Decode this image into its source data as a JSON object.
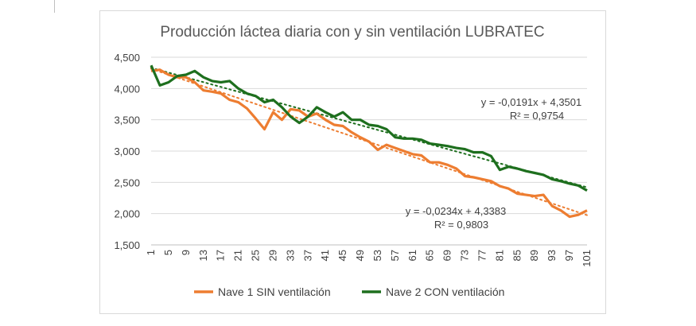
{
  "chart_data": {
    "type": "line",
    "title": "Producción láctea diaria con y sin ventilación LUBRATEC",
    "xlabel": "",
    "ylabel": "",
    "ylim": [
      1.5,
      4.5
    ],
    "xlim": [
      1,
      101
    ],
    "grid": true,
    "legend_position": "bottom",
    "y_ticks": [
      "1,500",
      "2,000",
      "2,500",
      "3,000",
      "3,500",
      "4,000",
      "4,500"
    ],
    "x_ticks": [
      "1",
      "5",
      "9",
      "13",
      "17",
      "21",
      "25",
      "29",
      "33",
      "37",
      "41",
      "45",
      "49",
      "53",
      "57",
      "61",
      "65",
      "69",
      "73",
      "77",
      "81",
      "85",
      "89",
      "93",
      "97",
      "101"
    ],
    "series": [
      {
        "name": "Nave 1 SIN ventilación",
        "color": "#ed7d31",
        "x": [
          1,
          3,
          5,
          7,
          9,
          11,
          13,
          15,
          17,
          19,
          21,
          23,
          25,
          27,
          29,
          31,
          33,
          35,
          37,
          39,
          41,
          43,
          45,
          47,
          49,
          51,
          53,
          55,
          57,
          59,
          61,
          63,
          65,
          67,
          69,
          71,
          73,
          75,
          77,
          79,
          81,
          83,
          85,
          87,
          89,
          91,
          93,
          95,
          97,
          99,
          101
        ],
        "y": [
          4.28,
          4.3,
          4.22,
          4.18,
          4.18,
          4.1,
          3.97,
          3.95,
          3.92,
          3.82,
          3.78,
          3.68,
          3.52,
          3.35,
          3.62,
          3.5,
          3.67,
          3.65,
          3.55,
          3.6,
          3.5,
          3.42,
          3.4,
          3.3,
          3.22,
          3.15,
          3.02,
          3.1,
          3.05,
          3.0,
          2.95,
          2.93,
          2.82,
          2.82,
          2.78,
          2.72,
          2.6,
          2.58,
          2.55,
          2.52,
          2.44,
          2.4,
          2.32,
          2.3,
          2.28,
          2.3,
          2.12,
          2.05,
          1.95,
          1.98,
          2.05
        ]
      },
      {
        "name": "Nave 2 CON ventilación",
        "color": "#1e6f1e",
        "x": [
          1,
          3,
          5,
          7,
          9,
          11,
          13,
          15,
          17,
          19,
          21,
          23,
          25,
          27,
          29,
          31,
          33,
          35,
          37,
          39,
          41,
          43,
          45,
          47,
          49,
          51,
          53,
          55,
          57,
          59,
          61,
          63,
          65,
          67,
          69,
          71,
          73,
          75,
          77,
          79,
          81,
          83,
          85,
          87,
          89,
          91,
          93,
          95,
          97,
          99,
          101
        ],
        "y": [
          4.37,
          4.05,
          4.1,
          4.2,
          4.22,
          4.28,
          4.18,
          4.12,
          4.1,
          4.12,
          4.0,
          3.92,
          3.88,
          3.78,
          3.82,
          3.7,
          3.55,
          3.45,
          3.55,
          3.7,
          3.62,
          3.55,
          3.62,
          3.5,
          3.5,
          3.42,
          3.4,
          3.35,
          3.22,
          3.2,
          3.2,
          3.18,
          3.12,
          3.1,
          3.08,
          3.05,
          3.03,
          2.98,
          2.98,
          2.92,
          2.7,
          2.75,
          2.72,
          2.68,
          2.65,
          2.62,
          2.55,
          2.52,
          2.48,
          2.45,
          2.37
        ]
      }
    ],
    "trendlines": [
      {
        "series": "Nave 2 CON ventilación",
        "equation": "y = -0,0191x + 4,3501",
        "r2": "R² = 0,9754",
        "slope": -0.0191,
        "intercept": 4.3501
      },
      {
        "series": "Nave 1 SIN ventilación",
        "equation": "y = -0,0234x + 4,3383",
        "r2": "R² = 0,9803",
        "slope": -0.0234,
        "intercept": 4.3383
      }
    ]
  }
}
